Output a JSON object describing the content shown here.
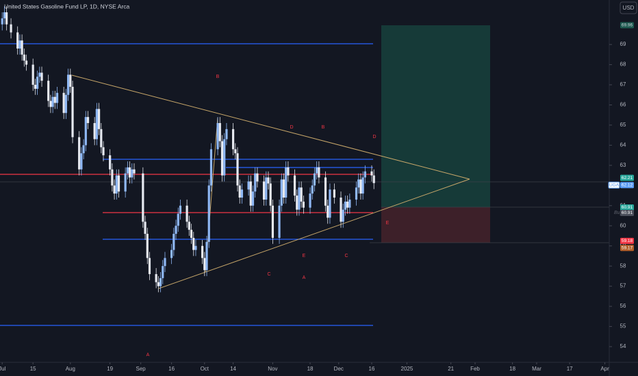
{
  "chart_data": {
    "type": "candlestick",
    "title": "United States Gasoline Fund LP, 1D, NYSE Arca",
    "currency": "USD",
    "up_color": "#8fb8f5",
    "down_color": "#e6e9f0",
    "xlim": [
      -1,
      276
    ],
    "ylim": [
      53.22,
      71.21
    ],
    "yticks": [
      54,
      55,
      56,
      57,
      58,
      59,
      60,
      61,
      62,
      63,
      64,
      65,
      66,
      67,
      68,
      69
    ],
    "xticks": [
      {
        "value": 0,
        "label": "Jul"
      },
      {
        "value": 14,
        "label": "15"
      },
      {
        "value": 31,
        "label": "Aug"
      },
      {
        "value": 49,
        "label": "19"
      },
      {
        "value": 63,
        "label": "Sep"
      },
      {
        "value": 77,
        "label": "16"
      },
      {
        "value": 92,
        "label": "Oct"
      },
      {
        "value": 105,
        "label": "14"
      },
      {
        "value": 123,
        "label": "Nov"
      },
      {
        "value": 140,
        "label": "18"
      },
      {
        "value": 153,
        "label": "Dec"
      },
      {
        "value": 168,
        "label": "16"
      },
      {
        "value": 184,
        "label": "2025"
      },
      {
        "value": 204,
        "label": "21"
      },
      {
        "value": 215,
        "label": "Feb"
      },
      {
        "value": 232,
        "label": "18"
      },
      {
        "value": 243,
        "label": "Mar"
      },
      {
        "value": 258,
        "label": "17"
      },
      {
        "value": 274,
        "label": "Apr"
      }
    ],
    "x": [
      0,
      1,
      2,
      4,
      7,
      8,
      9,
      10,
      11,
      14,
      15,
      16,
      17,
      18,
      21,
      22,
      23,
      24,
      25,
      28,
      29,
      30,
      31,
      32,
      35,
      36,
      37,
      38,
      39,
      42,
      43,
      44,
      45,
      46,
      49,
      50,
      51,
      52,
      53,
      56,
      57,
      58,
      59,
      60,
      64,
      65,
      66,
      67,
      70,
      71,
      72,
      73,
      74,
      77,
      78,
      79,
      80,
      81,
      84,
      85,
      86,
      87,
      88,
      91,
      92,
      93,
      94,
      95,
      98,
      99,
      100,
      101,
      102,
      105,
      106,
      107,
      108,
      109,
      112,
      113,
      114,
      115,
      116,
      119,
      120,
      121,
      122,
      123,
      126,
      127,
      128,
      129,
      130,
      133,
      134,
      135,
      136,
      137,
      140,
      141,
      142,
      143,
      144,
      147,
      148,
      149,
      151,
      154,
      155,
      156,
      157,
      158,
      161,
      162,
      163,
      164,
      165,
      168,
      169
    ],
    "open": [
      70.0,
      70.3,
      70.6,
      70.0,
      69.6,
      68.8,
      69.2,
      68.5,
      68.2,
      68.0,
      67.0,
      66.8,
      67.4,
      67.6,
      67.2,
      66.2,
      65.9,
      66.4,
      66.1,
      66.6,
      65.6,
      66.5,
      67.5,
      66.9,
      64.4,
      62.8,
      63.6,
      64.0,
      65.4,
      65.1,
      64.3,
      65.8,
      64.8,
      63.9,
      63.5,
      62.8,
      62.0,
      61.6,
      62.5,
      61.7,
      62.6,
      62.9,
      62.4,
      62.8,
      62.6,
      60.2,
      59.6,
      58.4,
      57.6,
      57.2,
      57.0,
      57.4,
      58.0,
      58.4,
      58.8,
      59.6,
      60.0,
      60.6,
      61.0,
      60.2,
      59.8,
      59.4,
      58.8,
      59.0,
      58.4,
      57.8,
      59.2,
      62.0,
      63.8,
      65.1,
      64.2,
      62.5,
      64.3,
      64.8,
      63.8,
      63.6,
      62.0,
      61.4,
      61.8,
      62.2,
      61.0,
      61.7,
      62.6,
      62.2,
      61.3,
      62.4,
      62.1,
      61.0,
      59.4,
      61.0,
      62.3,
      61.4,
      62.9,
      62.5,
      61.5,
      60.8,
      61.9,
      61.2,
      60.9,
      61.6,
      62.0,
      62.6,
      62.9,
      62.4,
      61.0,
      60.4,
      61.8,
      61.4,
      60.2,
      60.8,
      61.2,
      60.9,
      61.3,
      61.9,
      62.3,
      61.6,
      62.4,
      62.7,
      62.5
    ],
    "high": [
      70.6,
      70.9,
      70.9,
      70.3,
      69.9,
      69.5,
      69.5,
      68.8,
      68.5,
      68.3,
      67.3,
      67.7,
      67.9,
      67.9,
      67.5,
      66.5,
      66.7,
      66.7,
      66.9,
      66.9,
      66.8,
      67.8,
      67.8,
      67.2,
      64.7,
      63.9,
      64.3,
      65.7,
      65.7,
      65.4,
      66.1,
      66.1,
      65.1,
      64.2,
      63.8,
      63.1,
      62.3,
      62.8,
      62.8,
      62.9,
      63.2,
      63.2,
      63.1,
      63.1,
      62.9,
      60.5,
      59.9,
      58.7,
      57.9,
      57.5,
      57.7,
      58.3,
      58.7,
      59.1,
      59.9,
      60.3,
      60.9,
      61.3,
      61.3,
      60.5,
      60.1,
      59.7,
      59.3,
      59.3,
      58.7,
      59.5,
      62.3,
      64.1,
      65.4,
      65.4,
      64.5,
      64.6,
      65.1,
      65.1,
      64.1,
      63.9,
      62.3,
      62.1,
      62.5,
      62.5,
      62.0,
      62.9,
      62.9,
      62.5,
      62.7,
      62.7,
      62.4,
      61.3,
      61.3,
      62.6,
      62.6,
      63.2,
      63.2,
      62.8,
      61.8,
      62.2,
      62.2,
      61.5,
      61.9,
      62.3,
      62.9,
      63.2,
      63.2,
      62.7,
      61.3,
      62.1,
      62.1,
      61.7,
      61.1,
      61.5,
      61.5,
      61.6,
      62.2,
      62.6,
      62.6,
      62.7,
      63.0,
      63.0,
      62.8
    ],
    "low": [
      69.7,
      70.0,
      69.7,
      69.3,
      68.5,
      68.5,
      68.2,
      67.9,
      67.7,
      66.7,
      66.5,
      66.5,
      67.1,
      66.9,
      65.9,
      65.6,
      65.6,
      65.8,
      65.8,
      65.3,
      65.3,
      66.2,
      66.6,
      64.1,
      62.5,
      62.5,
      63.3,
      63.7,
      64.8,
      64.0,
      64.0,
      64.5,
      63.6,
      63.2,
      62.5,
      61.7,
      61.3,
      61.3,
      61.4,
      61.4,
      62.3,
      62.1,
      62.1,
      62.3,
      59.9,
      59.3,
      58.1,
      57.3,
      56.9,
      56.7,
      56.7,
      57.1,
      57.7,
      58.1,
      58.5,
      59.3,
      59.7,
      60.3,
      59.9,
      59.5,
      59.1,
      58.5,
      58.5,
      58.1,
      57.5,
      57.5,
      58.9,
      61.7,
      63.5,
      63.9,
      62.2,
      62.2,
      64.0,
      63.5,
      63.3,
      61.7,
      61.1,
      61.1,
      61.5,
      60.7,
      60.7,
      61.4,
      61.9,
      61.0,
      61.0,
      61.8,
      60.7,
      59.1,
      59.1,
      60.7,
      61.1,
      61.1,
      62.2,
      61.2,
      60.5,
      60.5,
      60.9,
      60.6,
      60.6,
      61.3,
      61.7,
      62.3,
      62.1,
      60.7,
      60.1,
      60.1,
      61.1,
      59.9,
      59.9,
      60.5,
      60.6,
      60.6,
      61.0,
      61.6,
      61.3,
      61.3,
      62.1,
      62.2,
      61.82
    ],
    "close": [
      70.3,
      70.6,
      70.0,
      69.6,
      68.8,
      69.2,
      68.5,
      68.2,
      68.0,
      67.0,
      66.8,
      67.4,
      67.6,
      67.2,
      66.2,
      65.9,
      66.4,
      66.1,
      66.6,
      65.6,
      66.5,
      67.5,
      66.9,
      64.4,
      62.8,
      63.6,
      64.0,
      65.4,
      65.1,
      64.3,
      65.8,
      64.8,
      63.9,
      63.5,
      62.8,
      62.0,
      61.6,
      62.5,
      61.7,
      62.6,
      62.9,
      62.4,
      62.8,
      62.6,
      60.2,
      59.6,
      58.4,
      57.6,
      57.2,
      57.0,
      57.4,
      58.0,
      58.4,
      58.8,
      59.6,
      60.0,
      60.6,
      61.0,
      60.2,
      59.8,
      59.4,
      58.8,
      59.0,
      58.4,
      57.8,
      59.2,
      62.0,
      63.8,
      65.1,
      64.2,
      62.5,
      64.3,
      64.8,
      63.8,
      63.6,
      62.0,
      61.4,
      61.8,
      62.2,
      61.0,
      61.7,
      62.6,
      62.2,
      61.3,
      62.4,
      62.1,
      61.0,
      59.4,
      61.0,
      62.3,
      61.4,
      62.9,
      62.5,
      61.5,
      60.8,
      61.9,
      61.2,
      60.9,
      61.6,
      62.0,
      62.6,
      62.9,
      62.4,
      61.0,
      60.4,
      61.8,
      61.4,
      60.2,
      60.8,
      61.2,
      60.9,
      61.3,
      61.9,
      62.3,
      61.6,
      62.4,
      62.7,
      62.5,
      62.12
    ],
    "price_labels": [
      {
        "value": 69.96,
        "color": "#1e5a50",
        "text_color": "#d1d4dc"
      },
      {
        "value": 62.21,
        "color": "#26a69a",
        "text_color": "#ffffff"
      },
      {
        "value": 62.12,
        "color": "#5b9cf6",
        "text_color": "#ffffff",
        "tag": "UGA"
      },
      {
        "value": 60.91,
        "color": "#26a69a",
        "text_color": "#ffffff"
      },
      {
        "value": 60.91,
        "color": "#4a4e5a",
        "text_color": "#ffffff"
      },
      {
        "value": 59.18,
        "color": "#f23645",
        "text_color": "#ffffff"
      },
      {
        "value": 59.17,
        "color": "#b35f2a",
        "text_color": "#ffffff"
      }
    ],
    "side_note": "Buy",
    "annotations": [
      "B",
      "D",
      "B",
      "D",
      "E",
      "E",
      "C",
      "C",
      "A",
      "A"
    ]
  }
}
